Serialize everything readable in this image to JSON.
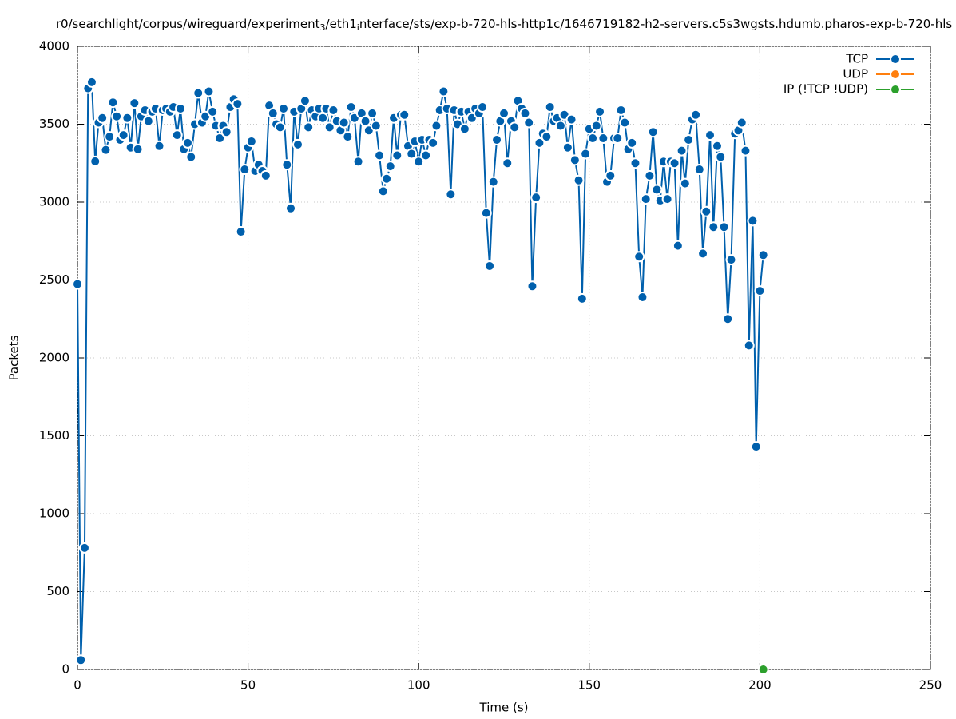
{
  "chart_data": {
    "type": "line",
    "title_parts": [
      "r0/searchlight/corpus/wireguard/experiment",
      "3",
      "/eth1",
      "i",
      "nterface/sts/exp-b-720-hls-http1c/1646719182-h2-servers.c5s3wgsts.hdumb.pharos-exp-b-720-hls"
    ],
    "x_label": "Time (s)",
    "y_label": "Packets",
    "xlim": [
      0,
      250
    ],
    "xticks": [
      0,
      50,
      100,
      150,
      200,
      250
    ],
    "ylim": [
      0,
      4000
    ],
    "yticks": [
      0,
      500,
      1000,
      1500,
      2000,
      2500,
      3000,
      3500,
      4000
    ],
    "grid": true,
    "legend": "top-right",
    "series": [
      {
        "name": "TCP",
        "color": "#0060ad",
        "x": [
          0,
          1.0,
          2.1,
          3.1,
          4.2,
          5.2,
          6.2,
          7.3,
          8.3,
          9.4,
          10.4,
          11.5,
          12.5,
          13.5,
          14.6,
          15.6,
          16.7,
          17.7,
          18.7,
          19.8,
          20.8,
          21.9,
          22.9,
          24.0,
          25.0,
          26.0,
          27.1,
          28.1,
          29.2,
          30.2,
          31.2,
          32.3,
          33.3,
          34.4,
          35.4,
          36.5,
          37.5,
          38.5,
          39.6,
          40.6,
          41.7,
          42.7,
          43.7,
          44.8,
          45.8,
          46.9,
          47.9,
          49.0,
          50.0,
          51.0,
          52.1,
          53.1,
          54.2,
          55.2,
          56.2,
          57.3,
          58.3,
          59.4,
          60.4,
          61.4,
          62.5,
          63.5,
          64.6,
          65.6,
          66.7,
          67.7,
          68.7,
          69.8,
          70.8,
          71.9,
          72.9,
          73.9,
          75.0,
          76.0,
          77.1,
          78.1,
          79.2,
          80.2,
          81.2,
          82.3,
          83.3,
          84.4,
          85.4,
          86.4,
          87.5,
          88.5,
          89.6,
          90.6,
          91.7,
          92.7,
          93.7,
          94.8,
          95.8,
          96.9,
          97.9,
          98.9,
          100.0,
          101.0,
          102.1,
          103.1,
          104.2,
          105.2,
          106.2,
          107.3,
          108.3,
          109.4,
          110.4,
          111.4,
          112.5,
          113.5,
          114.6,
          115.6,
          116.6,
          117.7,
          118.7,
          119.8,
          120.8,
          121.9,
          122.9,
          123.9,
          125.0,
          126.0,
          127.1,
          128.1,
          129.1,
          130.2,
          131.2,
          132.3,
          133.3,
          134.4,
          135.4,
          136.4,
          137.5,
          138.5,
          139.6,
          140.6,
          141.6,
          142.7,
          143.7,
          144.8,
          145.8,
          146.9,
          147.9,
          148.9,
          150.0,
          151.0,
          152.1,
          153.1,
          154.1,
          155.2,
          156.2,
          157.3,
          158.3,
          159.3,
          160.4,
          161.4,
          162.5,
          163.5,
          164.6,
          165.6,
          166.6,
          167.7,
          168.7,
          169.8,
          170.8,
          171.8,
          172.9,
          173.9,
          175.0,
          176.0,
          177.1,
          178.1,
          179.1,
          180.2,
          181.2,
          182.3,
          183.3,
          184.3,
          185.4,
          186.4,
          187.5,
          188.5,
          189.5,
          190.6,
          191.6,
          192.7,
          193.7,
          194.7,
          195.8,
          196.8,
          197.9,
          198.9,
          200.0,
          201.0
        ],
        "values": [
          2474,
          60,
          780,
          3730,
          3770,
          3262,
          3510,
          3540,
          3335,
          3420,
          3640,
          3550,
          3400,
          3430,
          3540,
          3350,
          3635,
          3340,
          3550,
          3590,
          3520,
          3580,
          3600,
          3360,
          3590,
          3600,
          3580,
          3610,
          3430,
          3600,
          3340,
          3380,
          3290,
          3500,
          3700,
          3510,
          3550,
          3710,
          3580,
          3490,
          3410,
          3490,
          3450,
          3610,
          3660,
          3630,
          2810,
          3210,
          3350,
          3390,
          3200,
          3240,
          3200,
          3170,
          3620,
          3570,
          3500,
          3480,
          3600,
          3240,
          2960,
          3580,
          3370,
          3600,
          3650,
          3480,
          3590,
          3550,
          3600,
          3540,
          3600,
          3480,
          3590,
          3520,
          3460,
          3510,
          3420,
          3610,
          3540,
          3260,
          3570,
          3520,
          3460,
          3570,
          3490,
          3300,
          3070,
          3150,
          3230,
          3540,
          3300,
          3560,
          3560,
          3360,
          3310,
          3390,
          3260,
          3400,
          3300,
          3400,
          3380,
          3490,
          3590,
          3710,
          3600,
          3050,
          3590,
          3500,
          3580,
          3470,
          3580,
          3540,
          3600,
          3570,
          3610,
          2930,
          2590,
          3130,
          3400,
          3520,
          3570,
          3250,
          3520,
          3480,
          3650,
          3600,
          3570,
          3510,
          2460,
          3030,
          3380,
          3440,
          3420,
          3610,
          3520,
          3540,
          3490,
          3560,
          3350,
          3530,
          3270,
          3140,
          2380,
          3310,
          3470,
          3410,
          3490,
          3580,
          3410,
          3130,
          3170,
          3410,
          3410,
          3590,
          3510,
          3340,
          3380,
          3250,
          2650,
          2390,
          3020,
          3170,
          3450,
          3080,
          3010,
          3260,
          3020,
          3260,
          3250,
          2720,
          3330,
          3120,
          3400,
          3530,
          3560,
          3210,
          2670,
          2940,
          3430,
          2840,
          3360,
          3290,
          2840,
          2250,
          2630,
          3440,
          3460,
          3510,
          3330,
          2080,
          2880,
          1430,
          2430,
          2660
        ]
      },
      {
        "name": "UDP",
        "color": "#ff7f0e",
        "x": [],
        "values": []
      },
      {
        "name": "IP (!TCP  !UDP)",
        "color": "#2ca02c",
        "x": [
          201
        ],
        "values": [
          0
        ]
      }
    ]
  }
}
